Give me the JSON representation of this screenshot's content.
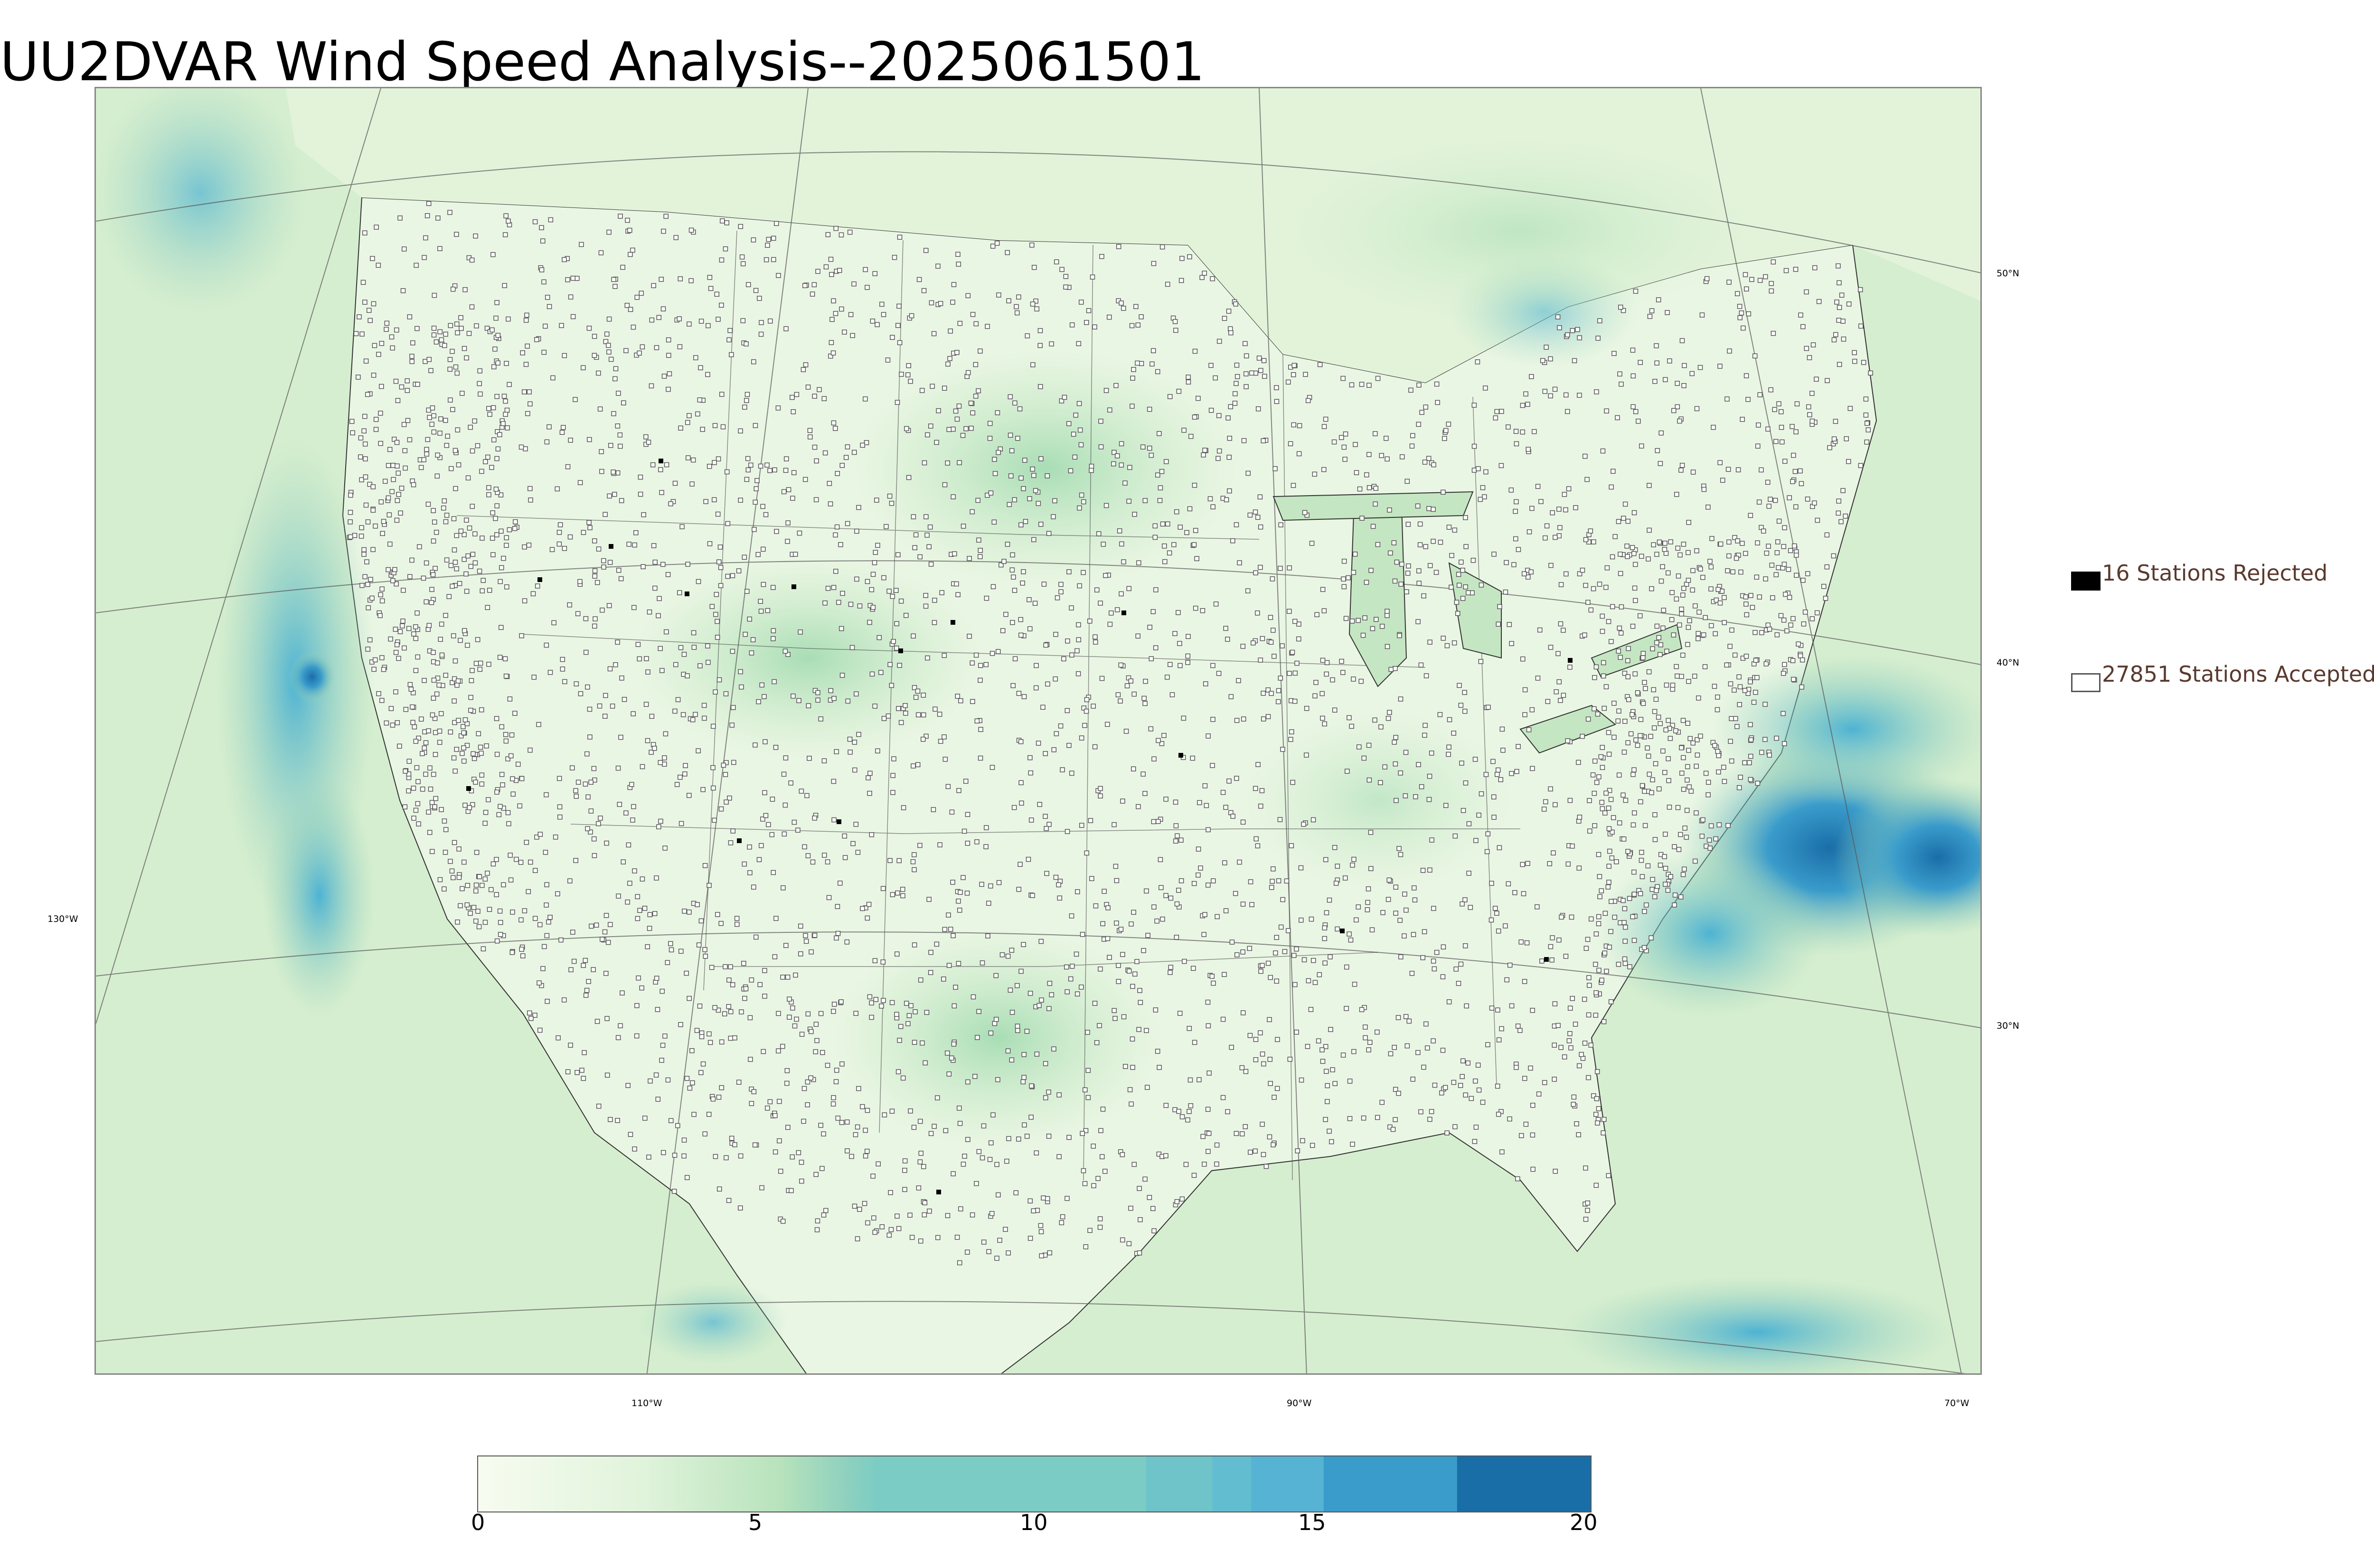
{
  "title": "UU2DVAR Wind Speed Analysis--2025061501",
  "map": {
    "lat_labels": [
      "50°N",
      "40°N",
      "30°N"
    ],
    "lon_labels": [
      "130°W",
      "110°W",
      "90°W",
      "70°W"
    ],
    "colors": {
      "background_water": "#d8efd2",
      "land_light": "#eef8e8",
      "wind_medium": "#9ed5b5",
      "wind_high": "#56b3d3",
      "wind_max": "#1a6ea8",
      "station_accepted": "#ffffff",
      "station_rejected": "#000000"
    }
  },
  "legend": {
    "rejected_label": "16 Stations Rejected",
    "accepted_label": "27851 Stations Accepted"
  },
  "colorbar": {
    "ticks": [
      "0",
      "5",
      "10",
      "15",
      "20"
    ],
    "min": 0,
    "max": 20,
    "colors": [
      "#f7fcf0",
      "#e0f3db",
      "#ccebc5",
      "#a8ddb5",
      "#7bccc4",
      "#5ab9d6",
      "#4eb3d3",
      "#3a9ccb",
      "#2b8cbe",
      "#1a6ea8"
    ]
  }
}
